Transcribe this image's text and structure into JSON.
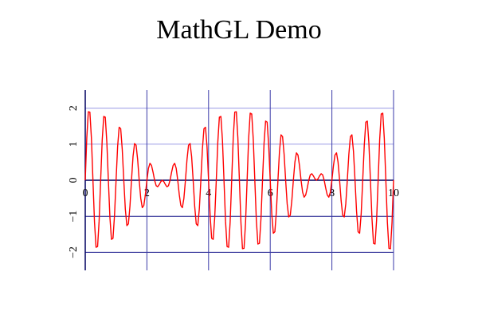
{
  "chart_data": {
    "type": "line",
    "title": "MathGL Demo",
    "color": "#ff0000",
    "grid": true,
    "xlim": [
      0,
      10
    ],
    "ylim": [
      -2.5,
      2.5
    ],
    "xticks": [
      0,
      2,
      4,
      6,
      8,
      10
    ],
    "yticks": [
      {
        "value": -2,
        "label": "−2"
      },
      {
        "value": -1,
        "label": "−1"
      },
      0,
      1,
      2
    ],
    "x": [
      0,
      0.05,
      0.1,
      0.15,
      0.2,
      0.25,
      0.3,
      0.35,
      0.4,
      0.45,
      0.5,
      0.55,
      0.6,
      0.65,
      0.7,
      0.75,
      0.8,
      0.85,
      0.9,
      0.95,
      1,
      1.05,
      1.1,
      1.15,
      1.2,
      1.25,
      1.3,
      1.35,
      1.4,
      1.45,
      1.5,
      1.55,
      1.6,
      1.65,
      1.7,
      1.75,
      1.8,
      1.85,
      1.9,
      1.95,
      2,
      2.05,
      2.1,
      2.15,
      2.2,
      2.25,
      2.3,
      2.35,
      2.4,
      2.45,
      2.5,
      2.55,
      2.6,
      2.65,
      2.7,
      2.75,
      2.8,
      2.85,
      2.9,
      2.95,
      3,
      3.05,
      3.1,
      3.15,
      3.2,
      3.25,
      3.3,
      3.35,
      3.4,
      3.45,
      3.5,
      3.55,
      3.6,
      3.65,
      3.7,
      3.75,
      3.8,
      3.85,
      3.9,
      3.95,
      4,
      4.05,
      4.1,
      4.15,
      4.2,
      4.25,
      4.3,
      4.35,
      4.4,
      4.45,
      4.5,
      4.55,
      4.6,
      4.65,
      4.7,
      4.75,
      4.8,
      4.85,
      4.9,
      4.95,
      5,
      5.05,
      5.1,
      5.15,
      5.2,
      5.25,
      5.3,
      5.35,
      5.4,
      5.45,
      5.5,
      5.55,
      5.6,
      5.65,
      5.7,
      5.75,
      5.8,
      5.85,
      5.9,
      5.95,
      6,
      6.05,
      6.1,
      6.15,
      6.2,
      6.25,
      6.3,
      6.35,
      6.4,
      6.45,
      6.5,
      6.55,
      6.6,
      6.65,
      6.7,
      6.75,
      6.8,
      6.85,
      6.9,
      6.95,
      7,
      7.05,
      7.1,
      7.15,
      7.2,
      7.25,
      7.3,
      7.35,
      7.4,
      7.45,
      7.5,
      7.55,
      7.6,
      7.65,
      7.7,
      7.75,
      7.8,
      7.85,
      7.9,
      7.95,
      8,
      8.05,
      8.1,
      8.15,
      8.2,
      8.25,
      8.3,
      8.35,
      8.4,
      8.45,
      8.5,
      8.55,
      8.6,
      8.65,
      8.7,
      8.75,
      8.8,
      8.85,
      8.9,
      8.95,
      9,
      9.05,
      9.1,
      9.15,
      9.2,
      9.25,
      9.3,
      9.35,
      9.4,
      9.45,
      9.5,
      9.55,
      9.6,
      9.65,
      9.7,
      9.75,
      9.8,
      9.85,
      9.9,
      9.95,
      10
    ],
    "values": [
      0,
      1.18,
      1.9,
      1.89,
      1.17,
      0,
      -1.16,
      -1.86,
      -1.84,
      -1.13,
      0,
      1.11,
      1.77,
      1.75,
      1.06,
      0,
      -1.03,
      -1.64,
      -1.61,
      -0.97,
      0,
      0.93,
      1.47,
      1.43,
      0.86,
      0,
      -0.8,
      -1.26,
      -1.21,
      -0.72,
      0,
      0.66,
      1.02,
      0.97,
      0.57,
      0,
      -0.5,
      -0.76,
      -0.7,
      -0.4,
      0,
      0.33,
      0.47,
      0.41,
      0.22,
      0,
      -0.15,
      -0.18,
      -0.12,
      -0.04,
      0,
      -0.04,
      -0.12,
      -0.18,
      -0.15,
      0,
      0.22,
      0.41,
      0.47,
      0.33,
      0,
      -0.4,
      -0.7,
      -0.76,
      -0.5,
      0,
      0.57,
      0.97,
      1.02,
      0.66,
      0,
      -0.72,
      -1.21,
      -1.26,
      -0.8,
      0,
      0.86,
      1.43,
      1.47,
      0.93,
      0,
      -0.97,
      -1.61,
      -1.64,
      -1.03,
      0,
      1.06,
      1.75,
      1.77,
      1.11,
      0,
      -1.13,
      -1.84,
      -1.86,
      -1.16,
      0,
      1.17,
      1.89,
      1.9,
      1.18,
      0,
      -1.18,
      -1.9,
      -1.89,
      -1.17,
      0,
      1.16,
      1.86,
      1.84,
      1.13,
      0,
      -1.11,
      -1.77,
      -1.75,
      -1.06,
      0,
      1.03,
      1.64,
      1.61,
      0.97,
      0,
      -0.93,
      -1.47,
      -1.43,
      -0.86,
      0,
      0.8,
      1.26,
      1.21,
      0.72,
      0,
      -0.66,
      -1.02,
      -0.97,
      -0.57,
      0,
      0.5,
      0.76,
      0.7,
      0.4,
      0,
      -0.33,
      -0.47,
      -0.41,
      -0.22,
      0,
      0.15,
      0.18,
      0.12,
      0.04,
      0,
      0.04,
      0.12,
      0.18,
      0.15,
      0,
      -0.22,
      -0.41,
      -0.47,
      -0.33,
      0,
      0.4,
      0.7,
      0.76,
      0.5,
      0,
      -0.57,
      -0.97,
      -1.02,
      -0.66,
      0,
      0.72,
      1.21,
      1.26,
      0.8,
      0,
      -0.86,
      -1.43,
      -1.47,
      -0.93,
      0,
      0.97,
      1.61,
      1.64,
      1.03,
      0,
      -1.06,
      -1.75,
      -1.77,
      -1.11,
      0,
      1.13,
      1.84,
      1.86,
      1.16,
      0,
      -1.17,
      -1.89,
      -1.9,
      -1.18,
      0
    ]
  }
}
